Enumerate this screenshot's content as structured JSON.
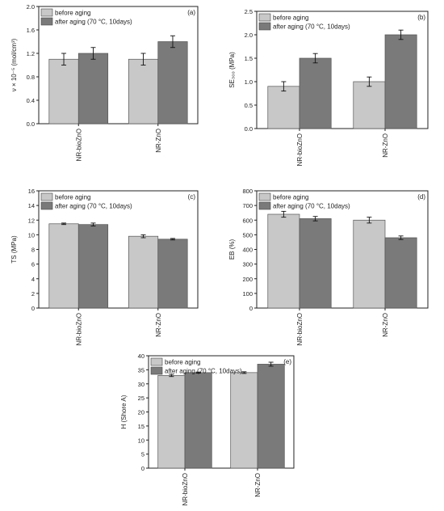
{
  "colors": {
    "before": "#c8c8c8",
    "after": "#7a7a7a",
    "axis": "#222222",
    "error": "#111111"
  },
  "chart_data": [
    {
      "id": "a",
      "type": "bar",
      "panel_label": "(a)",
      "ylabel": "ν × 10⁻⁵ (mol/cm³)",
      "categories": [
        "NR-bioZnO",
        "NR-ZnO"
      ],
      "ylim": [
        0,
        2.0
      ],
      "yticks": [
        0.0,
        0.4,
        0.8,
        1.2,
        1.6,
        2.0
      ],
      "tick_decimals": 1,
      "series": [
        {
          "name": "before aging",
          "values": [
            1.1,
            1.1
          ],
          "errors": [
            0.1,
            0.1
          ]
        },
        {
          "name": "after aging (70 °C, 10days)",
          "values": [
            1.2,
            1.4
          ],
          "errors": [
            0.1,
            0.1
          ]
        }
      ],
      "legend_position": "top-left"
    },
    {
      "id": "b",
      "type": "bar",
      "panel_label": "(b)",
      "ylabel": "SE₃₀₀ (MPa)",
      "categories": [
        "NR-bioZnO",
        "NR-ZnO"
      ],
      "ylim": [
        0,
        2.5
      ],
      "yticks": [
        0.0,
        0.5,
        1.0,
        1.5,
        2.0,
        2.5
      ],
      "tick_decimals": 1,
      "series": [
        {
          "name": "before aging",
          "values": [
            0.9,
            1.0
          ],
          "errors": [
            0.1,
            0.1
          ]
        },
        {
          "name": "after aging (70 °C, 10days)",
          "values": [
            1.5,
            2.0
          ],
          "errors": [
            0.1,
            0.1
          ]
        }
      ],
      "legend_position": "top-left"
    },
    {
      "id": "c",
      "type": "bar",
      "panel_label": "(c)",
      "ylabel": "TS (MPa)",
      "categories": [
        "NR-bioZnO",
        "NR-ZnO"
      ],
      "ylim": [
        0,
        16
      ],
      "yticks": [
        0,
        2,
        4,
        6,
        8,
        10,
        12,
        14,
        16
      ],
      "tick_decimals": 0,
      "series": [
        {
          "name": "before aging",
          "values": [
            11.5,
            9.8
          ],
          "errors": [
            0.1,
            0.2
          ]
        },
        {
          "name": "after aging (70 °C, 10days)",
          "values": [
            11.4,
            9.4
          ],
          "errors": [
            0.2,
            0.1
          ]
        }
      ],
      "legend_position": "top-left"
    },
    {
      "id": "d",
      "type": "bar",
      "panel_label": "(d)",
      "ylabel": "EB (%)",
      "categories": [
        "NR-bioZnO",
        "NR-ZnO"
      ],
      "ylim": [
        0,
        800
      ],
      "yticks": [
        0,
        100,
        200,
        300,
        400,
        500,
        600,
        700,
        800
      ],
      "tick_decimals": 0,
      "series": [
        {
          "name": "before aging",
          "values": [
            640,
            600
          ],
          "errors": [
            20,
            20
          ]
        },
        {
          "name": "after aging (70 °C, 10days)",
          "values": [
            610,
            480
          ],
          "errors": [
            15,
            12
          ]
        }
      ],
      "legend_position": "top-left"
    },
    {
      "id": "e",
      "type": "bar",
      "panel_label": "(e)",
      "ylabel": "H (Shore A)",
      "categories": [
        "NR-bioZnO",
        "NR-ZnO"
      ],
      "ylim": [
        0,
        40
      ],
      "yticks": [
        0,
        5,
        10,
        15,
        20,
        25,
        30,
        35,
        40
      ],
      "tick_decimals": 0,
      "series": [
        {
          "name": "before aging",
          "values": [
            33,
            34
          ],
          "errors": [
            0.4,
            0.3
          ]
        },
        {
          "name": "after aging (70 °C, 10days)",
          "values": [
            34,
            37
          ],
          "errors": [
            0.2,
            0.7
          ]
        }
      ],
      "legend_position": "top-left"
    }
  ]
}
